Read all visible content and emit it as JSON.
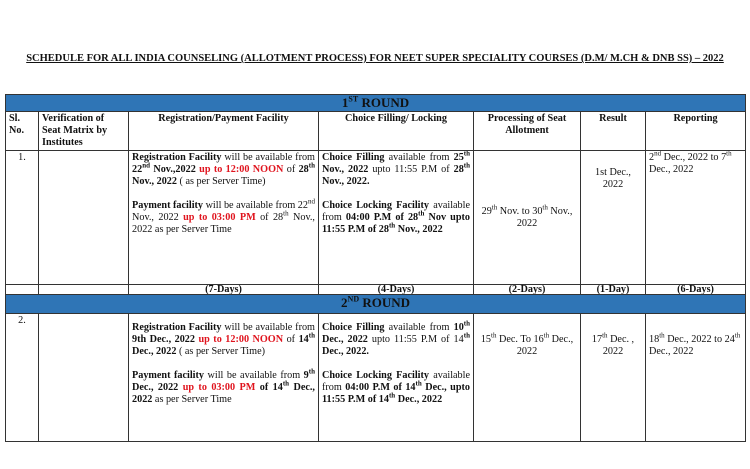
{
  "header": {
    "title": "SCHEDULE FOR ALL INDIA COUNSELING (ALLOTMENT PROCESS) FOR NEET SUPER SPECIALITY COURSES (D.M/ M.CH & DNB SS) – 2022"
  },
  "table": {
    "columns": [
      "Sl. No.",
      "Verification of Seat Matrix by Institutes",
      "Registration/Payment Facility",
      "Choice Filling/ Locking",
      "Processing of Seat Allotment",
      "Result",
      "Reporting"
    ],
    "rounds": [
      {
        "title": [
          "1",
          "ST",
          " ROUND"
        ],
        "sl": "1.",
        "registration": [
          [
            "Registration Facility",
            " will be available from ",
            "22",
            "nd",
            " Nov.,2022",
            " up to 12:00 NOON",
            " of ",
            "28",
            "th",
            " Nov., 2022",
            " ( as per Server Time)"
          ],
          [
            "Payment facility",
            " will be available from 22",
            "nd",
            " Nov., 2022 ",
            "up to 03:00 PM",
            " of 28",
            "th",
            " Nov., 2022 as per Server Time"
          ]
        ],
        "choice": [
          [
            "Choice Filling",
            " available from ",
            "25",
            "th",
            " Nov., 2022",
            " upto 11:55 P.M of ",
            "28",
            "th",
            " Nov., 2022."
          ],
          [
            "Choice Locking Facility",
            " available from ",
            "04:00 P.M of 28",
            "th",
            " Nov upto 11:55 P.M of 28",
            "th",
            " Nov., 2022"
          ]
        ],
        "processing": [
          "29",
          "th",
          " Nov. to 30",
          "th",
          " Nov., 2022"
        ],
        "result": [
          "1st Dec., 2022"
        ],
        "reporting": [
          "2",
          "nd",
          " Dec., 2022 to 7",
          "th",
          " Dec., 2022"
        ],
        "durations": [
          "(7-Days)",
          "(4-Days)",
          "(2-Days)",
          "(1-Day)",
          "(6-Days)"
        ]
      },
      {
        "title": [
          "2",
          "ND",
          " ROUND"
        ],
        "sl": "2.",
        "registration": [
          [
            "Registration Facility",
            " will be available from ",
            "9th Dec., 2022",
            " up to 12:00 NOON",
            " of ",
            "14",
            "th",
            " Dec., 2022",
            " ( as per Server Time)"
          ],
          [
            "Payment facility",
            " will be available from ",
            "9",
            "th",
            " Dec., 2022",
            " up to 03:00 PM",
            " of 14",
            "th",
            " Dec., 2022",
            " as per Server Time"
          ]
        ],
        "choice": [
          [
            "Choice Filling",
            " available from ",
            "10",
            "th",
            " Dec., 2022",
            " upto 11:55 P.M of 14",
            "th",
            " Dec., 2022."
          ],
          [
            "Choice Locking Facility",
            " available from ",
            "04:00 P.M of 14",
            "th",
            " Dec., upto 11:55 P.M of 14",
            "th",
            " Dec., 2022"
          ]
        ],
        "processing": [
          "15",
          "th",
          " Dec. To 16",
          "th",
          " Dec., 2022"
        ],
        "result": [
          "17",
          "th",
          " Dec. , 2022"
        ],
        "reporting": [
          "18",
          "th",
          " Dec., 2022 to 24",
          "th",
          " Dec., 2022"
        ]
      }
    ]
  }
}
